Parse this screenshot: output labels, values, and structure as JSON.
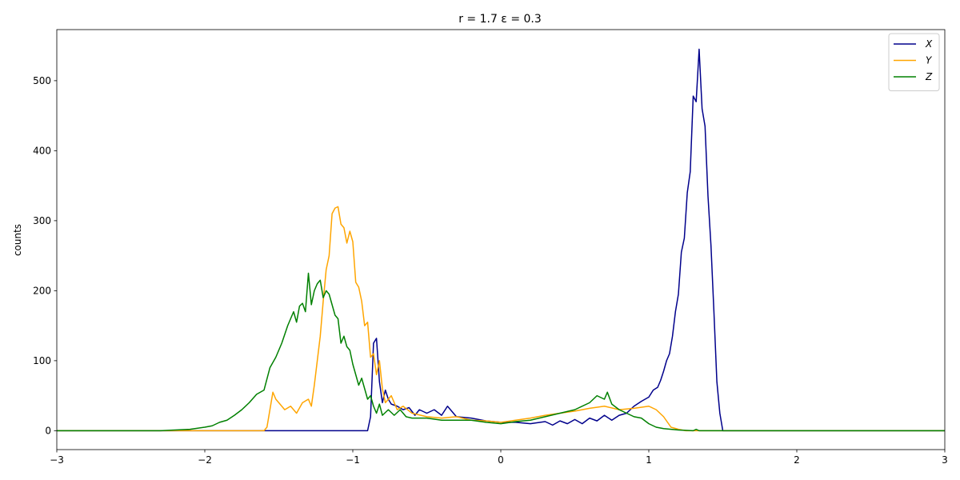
{
  "chart_data": {
    "type": "line",
    "title": "r = 1.7    ε = 0.3",
    "xlabel": "",
    "ylabel": "counts",
    "xlim": [
      -3,
      3
    ],
    "ylim": [
      -27,
      573
    ],
    "xticks": [
      -3,
      -2,
      -1,
      0,
      1,
      2,
      3
    ],
    "xtick_labels": [
      "−3",
      "−2",
      "−1",
      "0",
      "1",
      "2",
      "3"
    ],
    "yticks": [
      0,
      100,
      200,
      300,
      400,
      500
    ],
    "ytick_labels": [
      "0",
      "100",
      "200",
      "300",
      "400",
      "500"
    ],
    "grid": false,
    "legend_position": "top-right",
    "series": [
      {
        "name": "X",
        "color": "#00008b",
        "points": [
          [
            -3,
            0
          ],
          [
            -0.9,
            0
          ],
          [
            -0.88,
            20
          ],
          [
            -0.86,
            125
          ],
          [
            -0.84,
            132
          ],
          [
            -0.82,
            70
          ],
          [
            -0.8,
            40
          ],
          [
            -0.78,
            58
          ],
          [
            -0.76,
            45
          ],
          [
            -0.74,
            38
          ],
          [
            -0.7,
            35
          ],
          [
            -0.66,
            30
          ],
          [
            -0.62,
            33
          ],
          [
            -0.58,
            22
          ],
          [
            -0.55,
            30
          ],
          [
            -0.5,
            25
          ],
          [
            -0.45,
            30
          ],
          [
            -0.4,
            22
          ],
          [
            -0.36,
            35
          ],
          [
            -0.3,
            20
          ],
          [
            -0.2,
            18
          ],
          [
            -0.1,
            14
          ],
          [
            0,
            12
          ],
          [
            0.1,
            12
          ],
          [
            0.2,
            10
          ],
          [
            0.3,
            13
          ],
          [
            0.35,
            8
          ],
          [
            0.4,
            14
          ],
          [
            0.45,
            10
          ],
          [
            0.5,
            16
          ],
          [
            0.55,
            10
          ],
          [
            0.6,
            18
          ],
          [
            0.65,
            14
          ],
          [
            0.7,
            22
          ],
          [
            0.75,
            15
          ],
          [
            0.8,
            22
          ],
          [
            0.85,
            25
          ],
          [
            0.9,
            35
          ],
          [
            0.95,
            42
          ],
          [
            1.0,
            48
          ],
          [
            1.03,
            58
          ],
          [
            1.06,
            62
          ],
          [
            1.08,
            72
          ],
          [
            1.1,
            85
          ],
          [
            1.12,
            100
          ],
          [
            1.14,
            110
          ],
          [
            1.16,
            135
          ],
          [
            1.18,
            170
          ],
          [
            1.2,
            195
          ],
          [
            1.22,
            255
          ],
          [
            1.24,
            275
          ],
          [
            1.26,
            340
          ],
          [
            1.28,
            370
          ],
          [
            1.3,
            478
          ],
          [
            1.32,
            470
          ],
          [
            1.34,
            545
          ],
          [
            1.36,
            460
          ],
          [
            1.38,
            435
          ],
          [
            1.4,
            335
          ],
          [
            1.42,
            265
          ],
          [
            1.44,
            170
          ],
          [
            1.46,
            70
          ],
          [
            1.48,
            25
          ],
          [
            1.5,
            0
          ],
          [
            3,
            0
          ]
        ]
      },
      {
        "name": "Y",
        "color": "#ffa500",
        "points": [
          [
            -3,
            0
          ],
          [
            -1.6,
            0
          ],
          [
            -1.58,
            5
          ],
          [
            -1.56,
            30
          ],
          [
            -1.54,
            55
          ],
          [
            -1.52,
            45
          ],
          [
            -1.5,
            40
          ],
          [
            -1.46,
            30
          ],
          [
            -1.42,
            35
          ],
          [
            -1.38,
            25
          ],
          [
            -1.34,
            40
          ],
          [
            -1.3,
            45
          ],
          [
            -1.28,
            35
          ],
          [
            -1.26,
            65
          ],
          [
            -1.24,
            100
          ],
          [
            -1.22,
            135
          ],
          [
            -1.2,
            185
          ],
          [
            -1.18,
            230
          ],
          [
            -1.16,
            250
          ],
          [
            -1.14,
            310
          ],
          [
            -1.12,
            318
          ],
          [
            -1.1,
            320
          ],
          [
            -1.08,
            295
          ],
          [
            -1.06,
            290
          ],
          [
            -1.04,
            268
          ],
          [
            -1.02,
            285
          ],
          [
            -1.0,
            270
          ],
          [
            -0.98,
            212
          ],
          [
            -0.96,
            205
          ],
          [
            -0.94,
            185
          ],
          [
            -0.92,
            150
          ],
          [
            -0.9,
            155
          ],
          [
            -0.88,
            105
          ],
          [
            -0.86,
            110
          ],
          [
            -0.84,
            80
          ],
          [
            -0.82,
            100
          ],
          [
            -0.8,
            60
          ],
          [
            -0.78,
            40
          ],
          [
            -0.74,
            50
          ],
          [
            -0.7,
            30
          ],
          [
            -0.66,
            35
          ],
          [
            -0.6,
            25
          ],
          [
            -0.5,
            20
          ],
          [
            -0.4,
            18
          ],
          [
            -0.3,
            20
          ],
          [
            -0.2,
            15
          ],
          [
            -0.1,
            14
          ],
          [
            0,
            12
          ],
          [
            0.1,
            15
          ],
          [
            0.2,
            18
          ],
          [
            0.3,
            22
          ],
          [
            0.4,
            25
          ],
          [
            0.5,
            28
          ],
          [
            0.6,
            32
          ],
          [
            0.7,
            35
          ],
          [
            0.8,
            30
          ],
          [
            0.9,
            32
          ],
          [
            1.0,
            35
          ],
          [
            1.05,
            30
          ],
          [
            1.1,
            20
          ],
          [
            1.15,
            5
          ],
          [
            1.2,
            2
          ],
          [
            1.25,
            0
          ],
          [
            3,
            0
          ]
        ]
      },
      {
        "name": "Z",
        "color": "#008000",
        "points": [
          [
            -3,
            0
          ],
          [
            -2.3,
            0
          ],
          [
            -2.2,
            1
          ],
          [
            -2.1,
            2
          ],
          [
            -2.0,
            5
          ],
          [
            -1.95,
            7
          ],
          [
            -1.9,
            12
          ],
          [
            -1.85,
            15
          ],
          [
            -1.8,
            22
          ],
          [
            -1.75,
            30
          ],
          [
            -1.7,
            40
          ],
          [
            -1.65,
            52
          ],
          [
            -1.6,
            58
          ],
          [
            -1.56,
            90
          ],
          [
            -1.52,
            105
          ],
          [
            -1.48,
            125
          ],
          [
            -1.44,
            150
          ],
          [
            -1.42,
            160
          ],
          [
            -1.4,
            170
          ],
          [
            -1.38,
            155
          ],
          [
            -1.36,
            178
          ],
          [
            -1.34,
            182
          ],
          [
            -1.32,
            170
          ],
          [
            -1.3,
            225
          ],
          [
            -1.28,
            180
          ],
          [
            -1.26,
            200
          ],
          [
            -1.24,
            210
          ],
          [
            -1.22,
            215
          ],
          [
            -1.2,
            190
          ],
          [
            -1.18,
            200
          ],
          [
            -1.16,
            195
          ],
          [
            -1.14,
            180
          ],
          [
            -1.12,
            165
          ],
          [
            -1.1,
            160
          ],
          [
            -1.08,
            125
          ],
          [
            -1.06,
            135
          ],
          [
            -1.04,
            120
          ],
          [
            -1.02,
            115
          ],
          [
            -1.0,
            95
          ],
          [
            -0.98,
            80
          ],
          [
            -0.96,
            65
          ],
          [
            -0.94,
            75
          ],
          [
            -0.92,
            60
          ],
          [
            -0.9,
            45
          ],
          [
            -0.88,
            50
          ],
          [
            -0.86,
            35
          ],
          [
            -0.84,
            25
          ],
          [
            -0.82,
            38
          ],
          [
            -0.8,
            22
          ],
          [
            -0.76,
            30
          ],
          [
            -0.72,
            22
          ],
          [
            -0.68,
            30
          ],
          [
            -0.64,
            20
          ],
          [
            -0.6,
            18
          ],
          [
            -0.5,
            18
          ],
          [
            -0.4,
            15
          ],
          [
            -0.3,
            15
          ],
          [
            -0.2,
            15
          ],
          [
            -0.1,
            12
          ],
          [
            0,
            10
          ],
          [
            0.1,
            13
          ],
          [
            0.2,
            15
          ],
          [
            0.3,
            20
          ],
          [
            0.4,
            25
          ],
          [
            0.5,
            30
          ],
          [
            0.6,
            40
          ],
          [
            0.65,
            50
          ],
          [
            0.7,
            45
          ],
          [
            0.72,
            55
          ],
          [
            0.75,
            38
          ],
          [
            0.8,
            30
          ],
          [
            0.85,
            25
          ],
          [
            0.9,
            20
          ],
          [
            0.95,
            18
          ],
          [
            1.0,
            10
          ],
          [
            1.05,
            5
          ],
          [
            1.1,
            3
          ],
          [
            1.2,
            1
          ],
          [
            1.3,
            0
          ],
          [
            1.32,
            2
          ],
          [
            1.34,
            0
          ],
          [
            3,
            0
          ]
        ]
      }
    ]
  }
}
